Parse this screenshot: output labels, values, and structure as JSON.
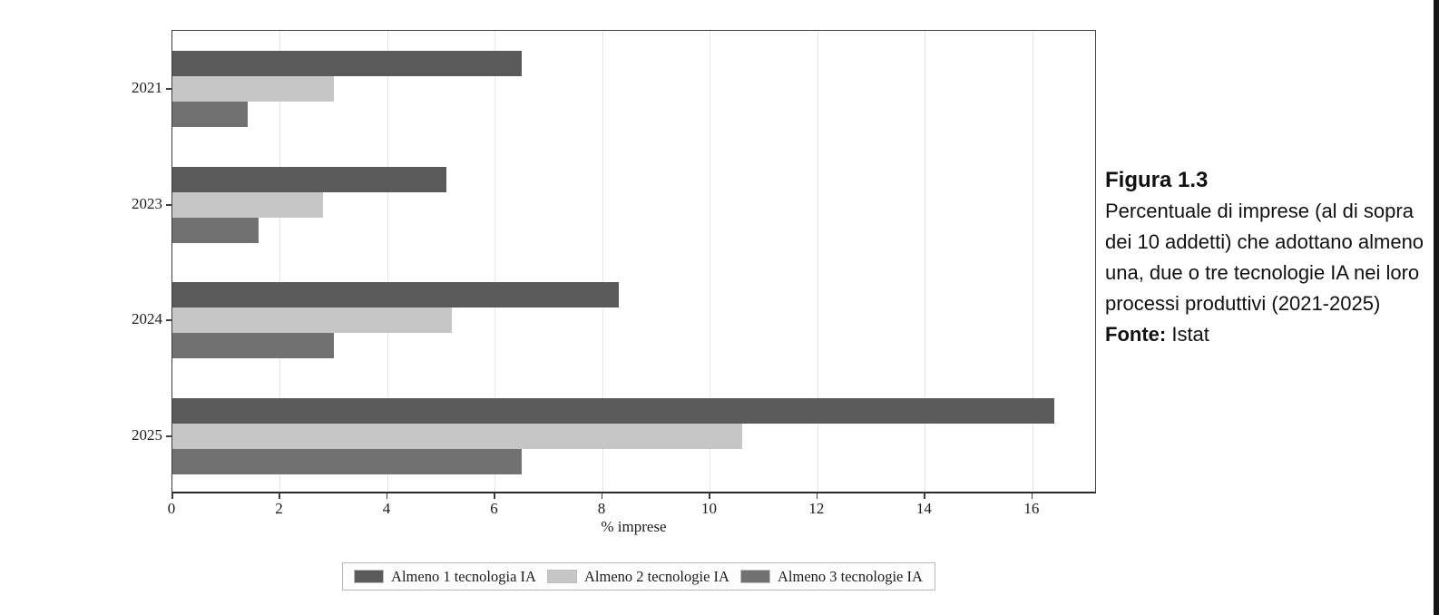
{
  "figure": {
    "id_label": "Figura 1.3",
    "caption": "Percentuale di imprese (al di sopra dei 10 addetti) che adottano almeno una, due o tre tecnologie IA nei loro processi produttivi (2021-2025)",
    "source_label": "Fonte:",
    "source_value": "Istat"
  },
  "chart_data": {
    "type": "bar",
    "orientation": "horizontal",
    "title": "",
    "xlabel": "% imprese",
    "ylabel": "",
    "categories": [
      "2021",
      "2023",
      "2024",
      "2025"
    ],
    "series": [
      {
        "name": "Almeno 1 tecnologia IA",
        "color": "#5a5a5a",
        "values": [
          6.5,
          5.1,
          8.3,
          16.4
        ]
      },
      {
        "name": "Almeno 2 tecnologie IA",
        "color": "#c6c6c6",
        "values": [
          3.0,
          2.8,
          5.2,
          10.6
        ]
      },
      {
        "name": "Almeno 3 tecnologie IA",
        "color": "#717171",
        "values": [
          1.4,
          1.6,
          3.0,
          6.5
        ]
      }
    ],
    "xticks": [
      0,
      2,
      4,
      6,
      8,
      10,
      12,
      14,
      16
    ],
    "xlim": [
      0,
      17.2
    ],
    "grid": true,
    "legend_position": "bottom"
  }
}
